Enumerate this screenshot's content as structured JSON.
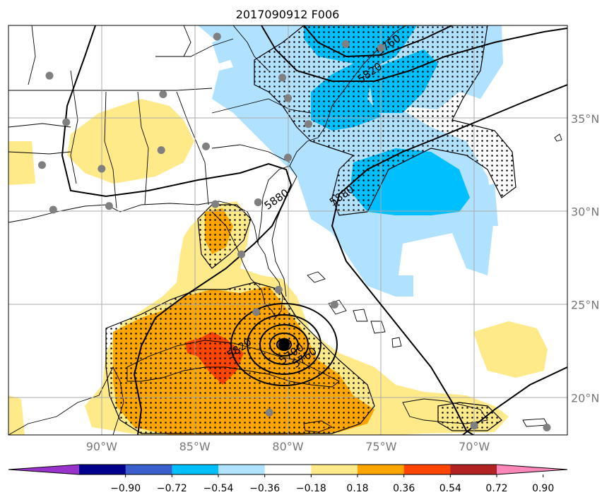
{
  "chart_data": {
    "type": "map",
    "title": "2017090912 F006",
    "xlabel": "",
    "ylabel": "",
    "xlim": [
      -95,
      -65
    ],
    "ylim": [
      18,
      40
    ],
    "x_ticks": [
      {
        "value": -90,
        "label": "90°W"
      },
      {
        "value": -85,
        "label": "85°W"
      },
      {
        "value": -80,
        "label": "80°W"
      },
      {
        "value": -75,
        "label": "75°W"
      },
      {
        "value": -70,
        "label": "70°W"
      }
    ],
    "y_ticks": [
      {
        "value": 20,
        "label": "20°N"
      },
      {
        "value": 25,
        "label": "25°N"
      },
      {
        "value": 30,
        "label": "30°N"
      },
      {
        "value": 35,
        "label": "35°N"
      }
    ],
    "grid": true,
    "colorbar": {
      "boundaries": [
        -0.9,
        -0.72,
        -0.54,
        -0.36,
        -0.18,
        0.18,
        0.36,
        0.54,
        0.72,
        0.9
      ],
      "tick_labels": [
        "−0.90",
        "−0.72",
        "−0.54",
        "−0.36",
        "−0.18",
        "0.18",
        "0.36",
        "0.54",
        "0.72",
        "0.90"
      ],
      "colors": [
        "#9933cc",
        "#00008b",
        "#3a5fcd",
        "#00bfff",
        "#b0e2ff",
        "#ffffff",
        "#ffea8a",
        "#ffa500",
        "#ff4500",
        "#b22222",
        "#ff88bb"
      ]
    },
    "contour_labels": [
      "5700",
      "5760",
      "5820",
      "5880"
    ],
    "contour_label_placements": [
      {
        "text": "5760",
        "lon": -74.5,
        "lat": 38.8
      },
      {
        "text": "5820",
        "lon": -75.5,
        "lat": 37.3
      },
      {
        "text": "5880",
        "lon": -80.5,
        "lat": 30.5
      },
      {
        "text": "5880",
        "lon": -77.0,
        "lat": 30.7
      },
      {
        "text": "5700",
        "lon": -79.7,
        "lat": 22.2
      },
      {
        "text": "5760",
        "lon": -79.0,
        "lat": 22.0
      },
      {
        "text": "5820",
        "lon": -82.5,
        "lat": 22.5
      }
    ],
    "stations": [
      [
        -83.8,
        39.4
      ],
      [
        -76.9,
        39.0
      ],
      [
        -75.0,
        38.8
      ],
      [
        -92.8,
        37.3
      ],
      [
        -86.7,
        36.3
      ],
      [
        -80.3,
        37.2
      ],
      [
        -80.0,
        36.1
      ],
      [
        -91.9,
        34.8
      ],
      [
        -86.8,
        33.3
      ],
      [
        -84.4,
        33.5
      ],
      [
        -93.2,
        32.5
      ],
      [
        -90.0,
        32.3
      ],
      [
        -80.0,
        32.9
      ],
      [
        -92.6,
        30.1
      ],
      [
        -89.6,
        30.3
      ],
      [
        -83.9,
        30.4
      ],
      [
        -81.6,
        30.5
      ],
      [
        -82.5,
        27.7
      ],
      [
        -80.5,
        25.8
      ],
      [
        -81.7,
        24.6
      ],
      [
        -77.5,
        25.0
      ],
      [
        -78.9,
        34.7
      ],
      [
        -81.0,
        19.2
      ],
      [
        -70.0,
        18.5
      ],
      [
        -66.1,
        18.4
      ]
    ],
    "hurricane_center": [
      -80.0,
      22.7
    ]
  }
}
